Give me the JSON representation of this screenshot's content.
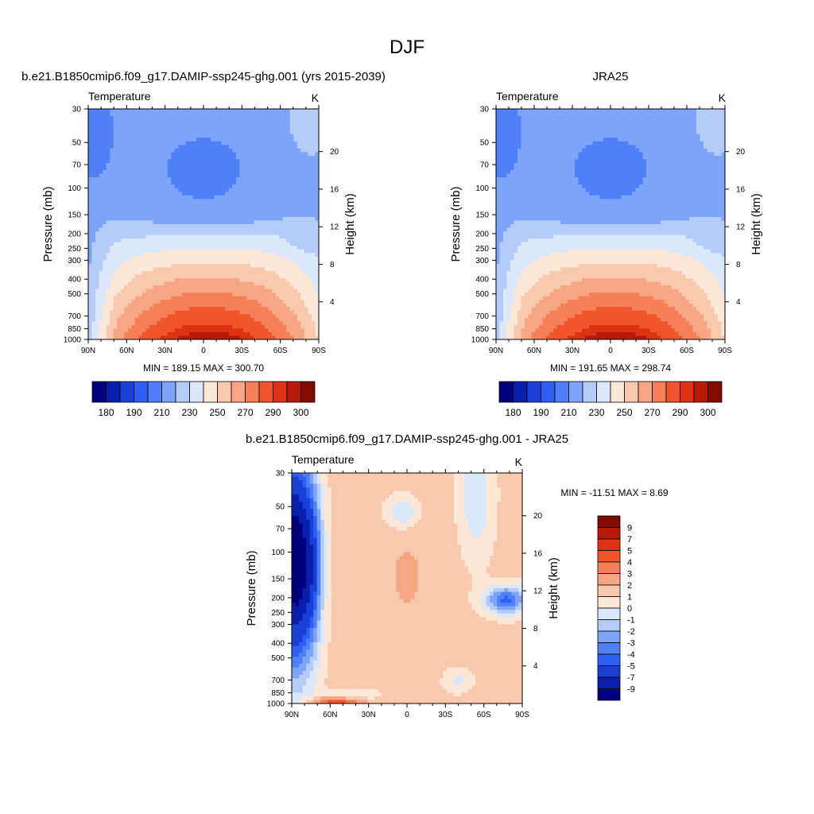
{
  "figure": {
    "title": "DJF"
  },
  "chart_data": [
    {
      "type": "heatmap",
      "title": "b.e21.B1850cmip6.f09_g17.DAMIP-ssp245-ghg.001 (yrs 2015-2039)",
      "left_string": "Temperature",
      "right_string": "K",
      "ylabel": "Pressure (mb)",
      "ylabel_right": "Height (km)",
      "x_ticks": [
        "90N",
        "60N",
        "30N",
        "0",
        "30S",
        "60S",
        "90S"
      ],
      "y_ticks": [
        "30",
        "50",
        "70",
        "100",
        "150",
        "200",
        "250",
        "300",
        "400",
        "500",
        "700",
        "850",
        "1000"
      ],
      "y_right_ticks": [
        "20",
        "16",
        "12",
        "8",
        "4"
      ],
      "stats": "MIN = 189.15  MAX = 300.70",
      "colorbar_labels": [
        "180",
        "190",
        "210",
        "230",
        "250",
        "270",
        "290",
        "300"
      ],
      "min": 189.15,
      "max": 300.7
    },
    {
      "type": "heatmap",
      "title": "JRA25",
      "left_string": "Temperature",
      "right_string": "K",
      "ylabel": "Pressure (mb)",
      "ylabel_right": "Height (km)",
      "x_ticks": [
        "90N",
        "60N",
        "30N",
        "0",
        "30S",
        "60S",
        "90S"
      ],
      "y_ticks": [
        "30",
        "50",
        "70",
        "100",
        "150",
        "200",
        "250",
        "300",
        "400",
        "500",
        "700",
        "850",
        "1000"
      ],
      "y_right_ticks": [
        "20",
        "16",
        "12",
        "8",
        "4"
      ],
      "stats": "MIN = 191.65  MAX = 298.74",
      "colorbar_labels": [
        "180",
        "190",
        "210",
        "230",
        "250",
        "270",
        "290",
        "300"
      ],
      "min": 191.65,
      "max": 298.74
    },
    {
      "type": "heatmap",
      "title": "b.e21.B1850cmip6.f09_g17.DAMIP-ssp245-ghg.001 - JRA25",
      "left_string": "Temperature",
      "right_string": "K",
      "ylabel": "Pressure (mb)",
      "ylabel_right": "Height (km)",
      "x_ticks": [
        "90N",
        "60N",
        "30N",
        "0",
        "30S",
        "60S",
        "90S"
      ],
      "y_ticks": [
        "30",
        "50",
        "70",
        "100",
        "150",
        "200",
        "250",
        "300",
        "400",
        "500",
        "700",
        "850",
        "1000"
      ],
      "y_right_ticks": [
        "20",
        "16",
        "12",
        "8",
        "4"
      ],
      "stats": "MIN = -11.51  MAX =   8.69",
      "colorbar_labels": [
        "9",
        "7",
        "5",
        "4",
        "3",
        "2",
        "1",
        "0",
        "-1",
        "-2",
        "-3",
        "-4",
        "-5",
        "-7",
        "-9"
      ],
      "min": -11.51,
      "max": 8.69
    }
  ],
  "palette": {
    "abs": [
      "#00007f",
      "#0a1eac",
      "#1a3fd6",
      "#2e5ff5",
      "#4f80f8",
      "#7ea4fa",
      "#b3ccf8",
      "#dbe8fc",
      "#fde7d6",
      "#f9c9ae",
      "#f6a685",
      "#f57f56",
      "#f0562a",
      "#dd3313",
      "#b71a06",
      "#850a00"
    ],
    "diff": [
      "#00007f",
      "#0a1eac",
      "#1a3fd6",
      "#2e5ff5",
      "#4f80f8",
      "#7ea4fa",
      "#b3ccf8",
      "#dbe8fc",
      "#fde7d6",
      "#f9c9ae",
      "#f6a685",
      "#f57f56",
      "#f0562a",
      "#dd3313",
      "#b71a06",
      "#850a00"
    ]
  }
}
